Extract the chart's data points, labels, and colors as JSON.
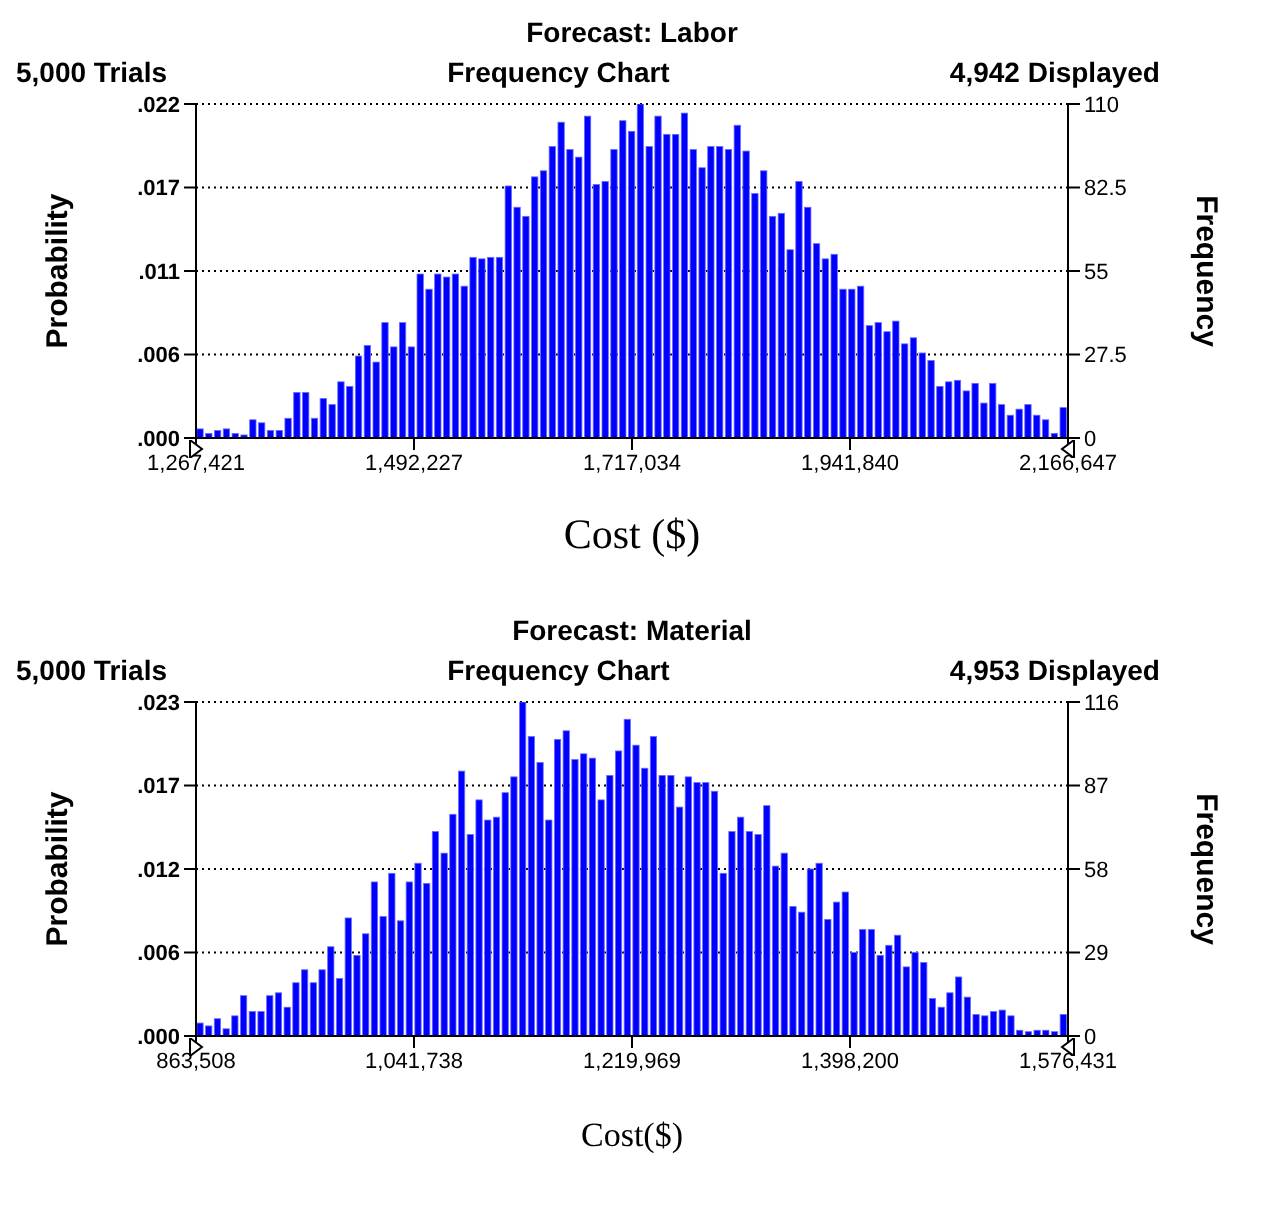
{
  "chart_data": [
    {
      "type": "histogram",
      "title": "Forecast: Labor",
      "subtitle": "Frequency Chart",
      "annotations": [
        "5,000 Trials",
        "4,942 Displayed"
      ],
      "xlabel": "Cost ($)",
      "ylabel": "Probability",
      "y2label": "Frequency",
      "bins": [
        1267421,
        1276504,
        1285587,
        1294670,
        1303753,
        1312836,
        1321920,
        1331003,
        1340086,
        1349169,
        1358252,
        1367335,
        1376418,
        1385501,
        1394584,
        1403667,
        1412750,
        1421834,
        1430917,
        1440000,
        1449083,
        1458166,
        1467249,
        1476332,
        1485415,
        1494498,
        1503581,
        1512664,
        1521748,
        1530831,
        1539914,
        1548997,
        1558080,
        1567163,
        1576246,
        1585329,
        1594412,
        1603495,
        1612578,
        1621662,
        1630745,
        1639828,
        1648911,
        1657994,
        1667077,
        1676160,
        1685243,
        1694326,
        1703409,
        1712492,
        1721576,
        1730659,
        1739742,
        1748825,
        1757908,
        1766991,
        1776074,
        1785157,
        1794240,
        1803323,
        1812406,
        1821489,
        1830573,
        1839656,
        1848739,
        1857822,
        1866905,
        1875988,
        1885071,
        1894154,
        1903237,
        1912320,
        1921403,
        1930487,
        1939570,
        1948653,
        1957736,
        1966819,
        1975902,
        1984985,
        1994068,
        2003151,
        2012234,
        2021317,
        2030401,
        2039484,
        2048567,
        2057650,
        2066733,
        2075816,
        2084899,
        2093982,
        2103065,
        2112148,
        2121231,
        2130315,
        2139398,
        2148481,
        2157564,
        2166647
      ],
      "series": [
        {
          "color": "#0000ff",
          "axis": "y2",
          "values": [
            3,
            1.5,
            2.5,
            3,
            1.5,
            1,
            6,
            5,
            2.5,
            2.5,
            6.5,
            15,
            15,
            6.5,
            13,
            11,
            18.5,
            17,
            27,
            30.5,
            25,
            38,
            30,
            38,
            30,
            54,
            49,
            54,
            53,
            54,
            50,
            59.5,
            59,
            59.5,
            59.5,
            83,
            76,
            73,
            86,
            88,
            96,
            104,
            95,
            92.5,
            106,
            83.5,
            84.5,
            95,
            104.5,
            101,
            110,
            96,
            106,
            100,
            100,
            107,
            95,
            89,
            96,
            96,
            95,
            103,
            94.5,
            80.5,
            88,
            73,
            74,
            62,
            84.5,
            76,
            64,
            59,
            60.5,
            49,
            49,
            50,
            37,
            38,
            35,
            38.5,
            31,
            33,
            28,
            25.5,
            17,
            18.5,
            19,
            15.5,
            18,
            11.5,
            18,
            11,
            7.5,
            9.5,
            11,
            7.5,
            6,
            1.5,
            10
          ]
        }
      ],
      "xlim": [
        1267421,
        2166647
      ],
      "xticks": [
        {
          "value": 1267421,
          "label": "1,267,421"
        },
        {
          "value": 1492227,
          "label": "1,492,227"
        },
        {
          "value": 1717034,
          "label": "1,717,034"
        },
        {
          "value": 1941840,
          "label": "1,941,840"
        },
        {
          "value": 2166647,
          "label": "2,166,647"
        }
      ],
      "ylim": [
        0,
        0.022
      ],
      "yticks": [
        {
          "value": 0,
          "label": ".000"
        },
        {
          "value": 0.0055,
          "label": ".006"
        },
        {
          "value": 0.011,
          "label": ".011"
        },
        {
          "value": 0.0165,
          "label": ".017"
        },
        {
          "value": 0.022,
          "label": ".022"
        }
      ],
      "y2lim": [
        0,
        110
      ],
      "y2ticks": [
        0,
        27.5,
        55,
        82.5,
        110
      ],
      "grid": "y"
    },
    {
      "type": "histogram",
      "title": "Forecast: Material",
      "subtitle": "Frequency Chart",
      "annotations": [
        "5,000 Trials",
        "4,953 Displayed"
      ],
      "xlabel": "Cost($)",
      "ylabel": "Probability",
      "y2label": "Frequency",
      "bins": [
        863508,
        870637,
        877766,
        884896,
        892025,
        899154,
        906283,
        913413,
        920542,
        927671,
        934800,
        941930,
        949059,
        956188,
        963317,
        970446,
        977576,
        984705,
        991834,
        998963,
        1006093,
        1013222,
        1020351,
        1027480,
        1034610,
        1041739,
        1048868,
        1055997,
        1063126,
        1070256,
        1077385,
        1084514,
        1091643,
        1098773,
        1105902,
        1113031,
        1120160,
        1127290,
        1134419,
        1141548,
        1148677,
        1155806,
        1162936,
        1170065,
        1177194,
        1184323,
        1191453,
        1198582,
        1205711,
        1212840,
        1219970,
        1227099,
        1234228,
        1241357,
        1248486,
        1255616,
        1262745,
        1269874,
        1277003,
        1284133,
        1291262,
        1298391,
        1305520,
        1312649,
        1319779,
        1326908,
        1334037,
        1341166,
        1348296,
        1355425,
        1362554,
        1369683,
        1376813,
        1383942,
        1391071,
        1398200,
        1405329,
        1412459,
        1419588,
        1426717,
        1433846,
        1440976,
        1448105,
        1455234,
        1462363,
        1469493,
        1476622,
        1483751,
        1490880,
        1498009,
        1505139,
        1512268,
        1519397,
        1526526,
        1533656,
        1540785,
        1547914,
        1555043,
        1562173,
        1569302,
        1576431
      ],
      "series": [
        {
          "color": "#0000ff",
          "axis": "y2",
          "values": [
            4.5,
            3.5,
            6,
            2.5,
            7,
            14,
            8.5,
            8.5,
            14,
            15,
            10,
            18.5,
            23,
            18.5,
            23,
            31,
            20,
            41,
            28,
            35.5,
            53.5,
            41.5,
            56.5,
            40,
            53.5,
            60,
            53,
            71,
            63.5,
            77,
            92,
            70,
            82,
            75,
            76,
            84.5,
            90,
            116,
            104,
            95,
            75,
            103,
            106,
            96,
            98,
            96.5,
            82,
            90.5,
            99,
            110,
            101,
            93,
            104,
            90.5,
            90.5,
            79.5,
            90,
            88,
            88,
            85,
            56.5,
            71,
            76,
            71,
            70,
            80,
            59,
            63.5,
            45,
            43,
            58,
            60,
            40.5,
            46.5,
            50,
            29,
            37,
            37,
            28,
            31.5,
            35,
            24,
            29,
            25.5,
            13,
            10,
            15,
            20.5,
            13.5,
            7.5,
            7,
            8.5,
            9,
            7,
            2,
            1.5,
            2,
            2,
            1.5,
            7.5
          ]
        }
      ],
      "xlim": [
        863508,
        1576431
      ],
      "xticks": [
        {
          "value": 863508,
          "label": "863,508"
        },
        {
          "value": 1041738,
          "label": "1,041,738"
        },
        {
          "value": 1219969,
          "label": "1,219,969"
        },
        {
          "value": 1398200,
          "label": "1,398,200"
        },
        {
          "value": 1576431,
          "label": "1,576,431"
        }
      ],
      "ylim": [
        0,
        0.0232
      ],
      "yticks": [
        {
          "value": 0,
          "label": ".000"
        },
        {
          "value": 0.0058,
          "label": ".006"
        },
        {
          "value": 0.0116,
          "label": ".012"
        },
        {
          "value": 0.0174,
          "label": ".017"
        },
        {
          "value": 0.0232,
          "label": ".023"
        }
      ],
      "y2lim": [
        0,
        116
      ],
      "y2ticks": [
        0,
        29,
        58,
        87,
        116
      ],
      "grid": "y"
    }
  ]
}
